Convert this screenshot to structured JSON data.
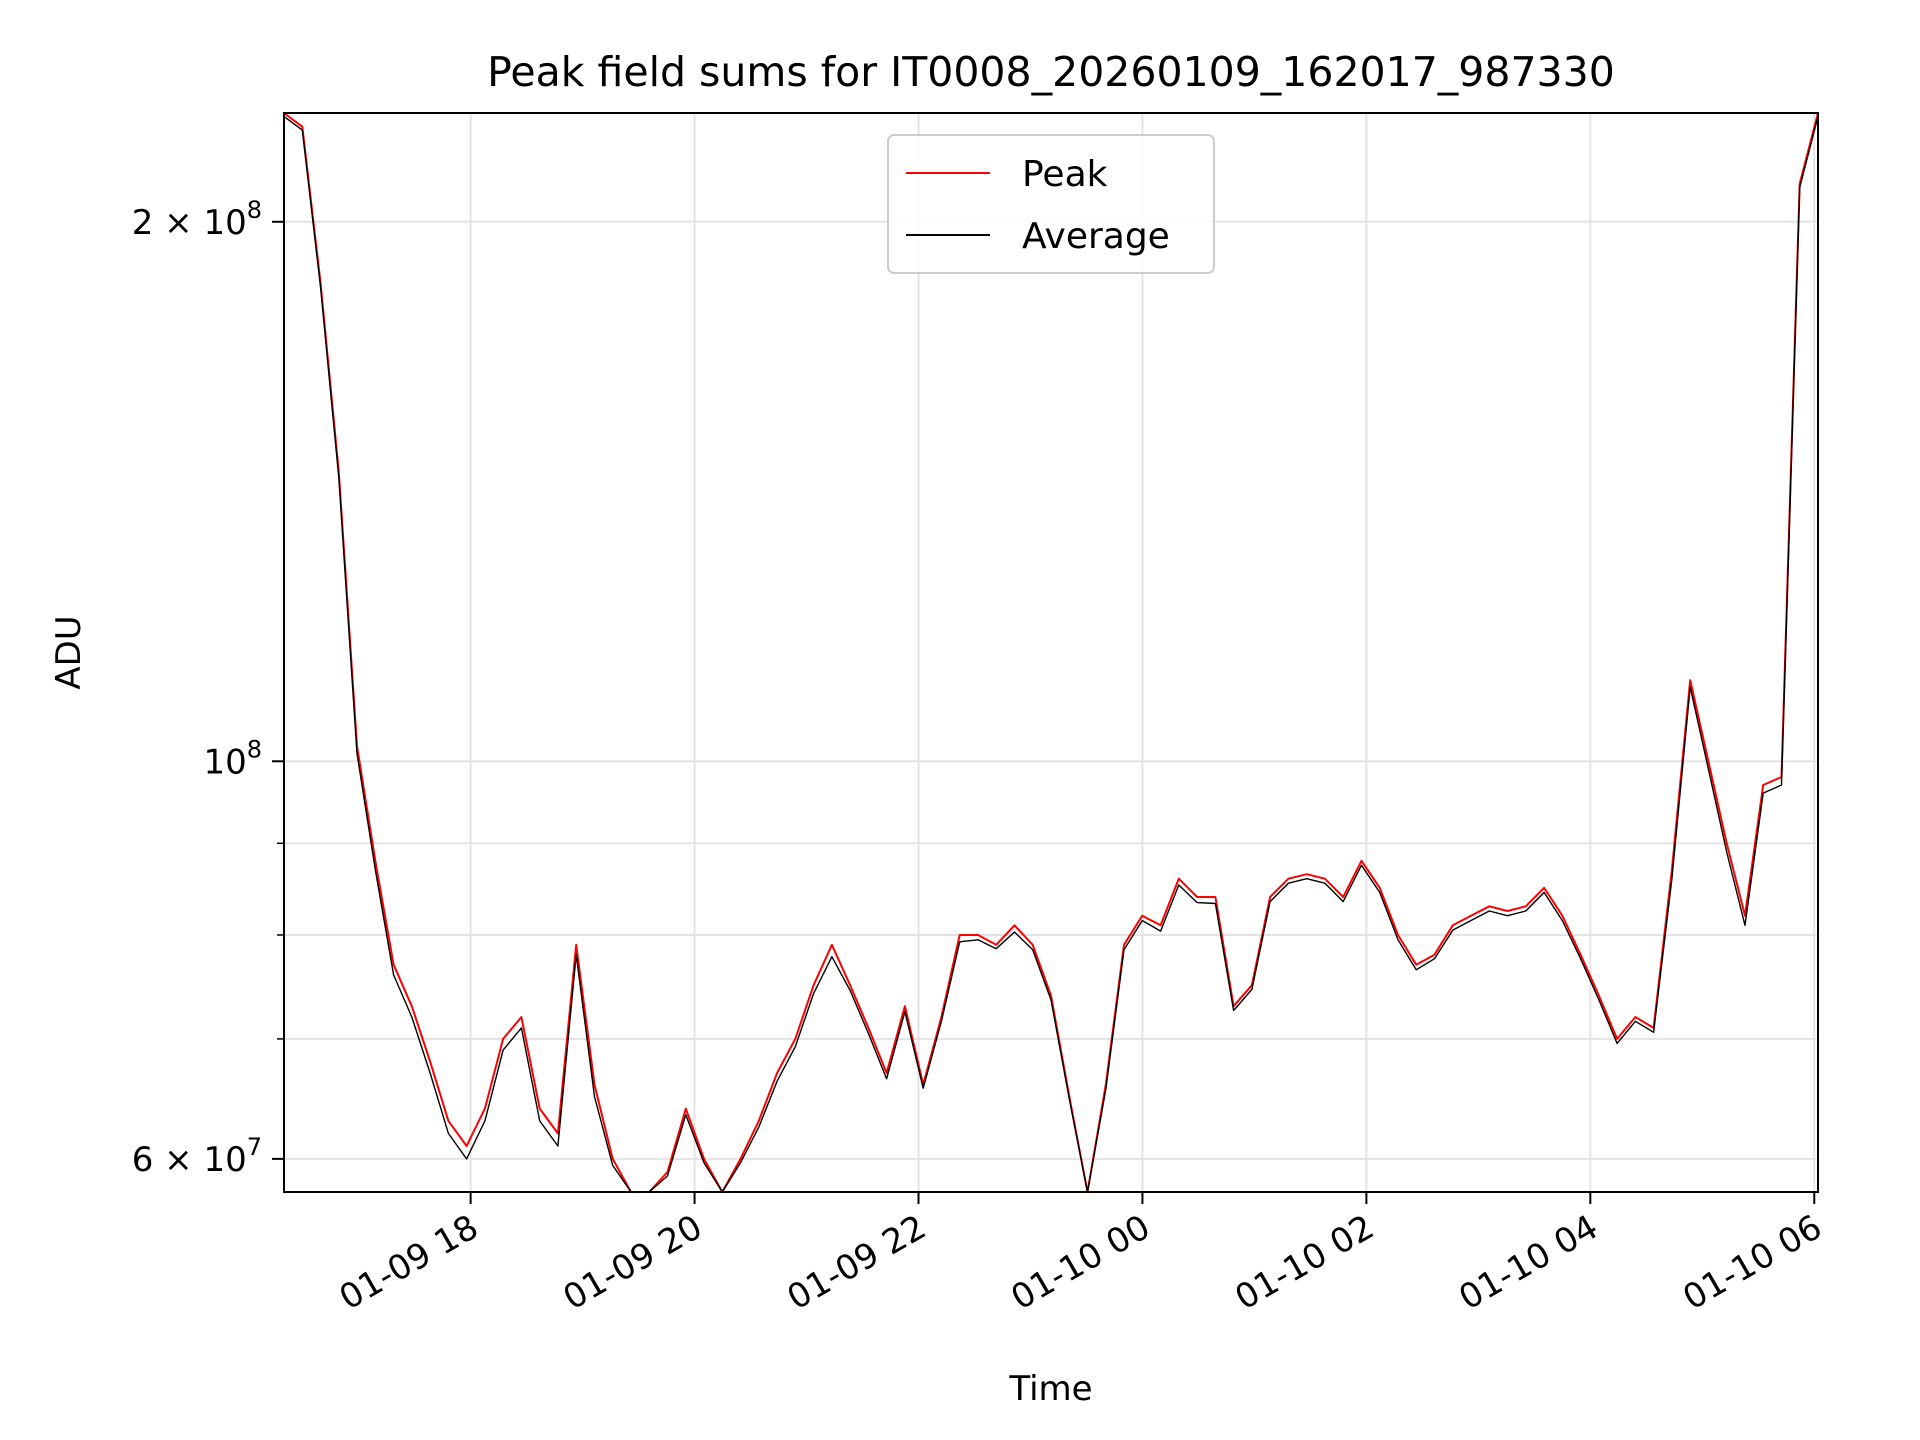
{
  "chart_data": {
    "type": "line",
    "title": "Peak field sums for IT0008_20260109_162017_987330",
    "xlabel": "Time",
    "ylabel": "ADU",
    "y_scale": "log",
    "ylim": [
      57500000,
      230000000
    ],
    "xlim": [
      "2026-01-09 16:20",
      "2026-01-10 06:02"
    ],
    "grid": true,
    "legend": "upper center",
    "x_ticks": [
      {
        "at": "2026-01-09 18:00",
        "label": "01-09 18"
      },
      {
        "at": "2026-01-09 20:00",
        "label": "01-09 20"
      },
      {
        "at": "2026-01-09 22:00",
        "label": "01-09 22"
      },
      {
        "at": "2026-01-10 00:00",
        "label": "01-10 00"
      },
      {
        "at": "2026-01-10 02:00",
        "label": "01-10 02"
      },
      {
        "at": "2026-01-10 04:00",
        "label": "01-10 04"
      },
      {
        "at": "2026-01-10 06:00",
        "label": "01-10 06"
      }
    ],
    "y_ticks": [
      {
        "value": 60000000,
        "mantissa": "6",
        "base": "10",
        "exponent": "7"
      },
      {
        "value": 100000000,
        "mantissa": "",
        "base": "10",
        "exponent": "8"
      },
      {
        "value": 200000000,
        "mantissa": "2",
        "base": "10",
        "exponent": "8"
      }
    ],
    "y_minor_ticks": [
      70000000,
      80000000,
      90000000
    ],
    "series": [
      {
        "name": "Peak",
        "color": "#ff0000",
        "y": [
          230000000,
          226000000,
          185000000,
          145000000,
          102000000,
          88000000,
          77000000,
          73000000,
          68000000,
          63000000,
          61000000,
          64000000,
          70000000,
          72000000,
          64000000,
          62000000,
          79000000,
          66000000,
          60000000,
          57000000,
          56500000,
          59000000,
          64000000,
          60000000,
          57000000,
          60000000,
          63000000,
          67000000,
          70000000,
          75000000,
          79000000,
          75000000,
          71000000,
          67000000,
          73000000,
          66000000,
          72000000,
          80000000,
          80000000,
          79000000,
          81000000,
          79000000,
          74000000,
          65000000,
          56500000,
          66000000,
          79000000,
          82000000,
          81000000,
          86000000,
          84000000,
          84000000,
          73000000,
          75000000,
          84000000,
          86000000,
          86500000,
          86000000,
          84000000,
          88000000,
          85000000,
          80000000,
          77000000,
          78000000,
          81000000,
          82000000,
          83000000,
          82500000,
          83000000,
          85000000,
          82000000,
          78000000,
          74000000,
          70000000,
          72000000,
          71000000,
          87000000,
          111000000,
          100000000,
          90000000,
          82000000,
          97000000,
          98000000,
          210000000,
          230000000
        ]
      },
      {
        "name": "Average",
        "color": "#000000",
        "y": [
          229000000,
          225000000,
          184000000,
          144000000,
          101000000,
          87000000,
          76000000,
          72000000,
          67000000,
          62000000,
          60000000,
          63000000,
          69000000,
          71000000,
          63000000,
          61000000,
          78000000,
          65000000,
          59500000,
          56800000,
          56300000,
          58700000,
          63500000,
          59700000,
          56800000,
          59700000,
          62500000,
          66300000,
          69300000,
          74200000,
          77800000,
          74500000,
          70500000,
          66500000,
          72500000,
          65700000,
          71600000,
          79300000,
          79500000,
          78600000,
          80300000,
          78500000,
          73600000,
          64800000,
          56300000,
          65600000,
          78500000,
          81500000,
          80400000,
          85300000,
          83400000,
          83300000,
          72600000,
          74600000,
          83500000,
          85500000,
          86000000,
          85500000,
          83500000,
          87500000,
          84500000,
          79500000,
          76500000,
          77600000,
          80500000,
          81500000,
          82500000,
          82000000,
          82500000,
          84500000,
          81500000,
          77600000,
          73600000,
          69600000,
          71600000,
          70600000,
          86000000,
          110000000,
          99000000,
          89000000,
          81000000,
          96000000,
          97000000,
          209000000,
          229000000
        ]
      }
    ]
  }
}
